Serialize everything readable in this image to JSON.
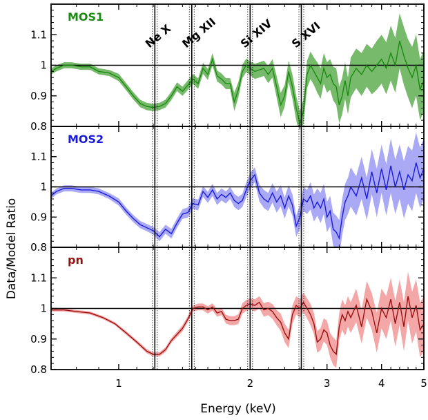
{
  "chart_data": {
    "type": "line",
    "xlabel": "Energy (keV)",
    "ylabel": "Data/Model Ratio",
    "x_scale": "log",
    "xlim": [
      0.7,
      5.0
    ],
    "x_ticks": [
      1,
      2,
      3,
      4,
      5
    ],
    "x_tick_labels": [
      "1",
      "2",
      "3",
      "4",
      "5"
    ],
    "ylim": [
      0.8,
      1.2
    ],
    "y_ticks": [
      0.8,
      0.9,
      1.0,
      1.1
    ],
    "y_tick_labels": [
      "0.8",
      "0.9",
      "1",
      "1.1"
    ],
    "reference_y": 1.0,
    "lines": [
      {
        "label": "Ne X",
        "energy": 1.21
      },
      {
        "label": "Mg XII",
        "energy": 1.47
      },
      {
        "label": "Si XIV",
        "energy": 2.0
      },
      {
        "label": "S XVI",
        "energy": 2.62
      }
    ],
    "panels": [
      {
        "name": "MOS1",
        "color": "#1a8a10",
        "band_color": "#4aa33a",
        "points": [
          [
            0.7,
            0.98,
            0.01
          ],
          [
            0.72,
            0.99,
            0.01
          ],
          [
            0.75,
            1.0,
            0.01
          ],
          [
            0.78,
            1.0,
            0.01
          ],
          [
            0.82,
            0.995,
            0.01
          ],
          [
            0.86,
            0.995,
            0.01
          ],
          [
            0.9,
            0.98,
            0.01
          ],
          [
            0.95,
            0.975,
            0.01
          ],
          [
            1.0,
            0.96,
            0.012
          ],
          [
            1.04,
            0.93,
            0.012
          ],
          [
            1.08,
            0.9,
            0.012
          ],
          [
            1.12,
            0.875,
            0.012
          ],
          [
            1.16,
            0.865,
            0.012
          ],
          [
            1.2,
            0.862,
            0.012
          ],
          [
            1.24,
            0.865,
            0.012
          ],
          [
            1.28,
            0.875,
            0.013
          ],
          [
            1.32,
            0.9,
            0.014
          ],
          [
            1.36,
            0.93,
            0.014
          ],
          [
            1.4,
            0.915,
            0.015
          ],
          [
            1.44,
            0.935,
            0.016
          ],
          [
            1.48,
            0.955,
            0.016
          ],
          [
            1.52,
            0.94,
            0.017
          ],
          [
            1.56,
            0.99,
            0.018
          ],
          [
            1.6,
            0.97,
            0.018
          ],
          [
            1.64,
            1.02,
            0.02
          ],
          [
            1.68,
            0.965,
            0.018
          ],
          [
            1.72,
            0.955,
            0.018
          ],
          [
            1.76,
            0.94,
            0.018
          ],
          [
            1.8,
            0.94,
            0.018
          ],
          [
            1.84,
            0.88,
            0.03
          ],
          [
            1.88,
            0.92,
            0.025
          ],
          [
            1.92,
            0.98,
            0.022
          ],
          [
            1.96,
            1.0,
            0.022
          ],
          [
            2.0,
            0.99,
            0.022
          ],
          [
            2.05,
            0.98,
            0.025
          ],
          [
            2.1,
            0.985,
            0.025
          ],
          [
            2.15,
            0.99,
            0.025
          ],
          [
            2.2,
            0.97,
            0.028
          ],
          [
            2.25,
            0.99,
            0.03
          ],
          [
            2.3,
            0.93,
            0.035
          ],
          [
            2.35,
            0.87,
            0.04
          ],
          [
            2.4,
            0.9,
            0.035
          ],
          [
            2.45,
            0.98,
            0.035
          ],
          [
            2.5,
            0.93,
            0.04
          ],
          [
            2.55,
            0.86,
            0.04
          ],
          [
            2.6,
            0.81,
            0.04
          ],
          [
            2.65,
            0.85,
            0.04
          ],
          [
            2.7,
            0.97,
            0.045
          ],
          [
            2.75,
            1.0,
            0.045
          ],
          [
            2.8,
            0.98,
            0.045
          ],
          [
            2.85,
            0.96,
            0.05
          ],
          [
            2.9,
            0.94,
            0.05
          ],
          [
            2.95,
            0.99,
            0.05
          ],
          [
            3.0,
            0.96,
            0.05
          ],
          [
            3.05,
            0.97,
            0.05
          ],
          [
            3.1,
            0.94,
            0.055
          ],
          [
            3.15,
            0.93,
            0.06
          ],
          [
            3.2,
            0.87,
            0.06
          ],
          [
            3.25,
            0.9,
            0.06
          ],
          [
            3.3,
            0.95,
            0.06
          ],
          [
            3.35,
            0.9,
            0.06
          ],
          [
            3.4,
            0.96,
            0.065
          ],
          [
            3.5,
            0.99,
            0.065
          ],
          [
            3.6,
            0.97,
            0.07
          ],
          [
            3.7,
            1.0,
            0.07
          ],
          [
            3.8,
            0.98,
            0.075
          ],
          [
            3.9,
            1.0,
            0.08
          ],
          [
            4.0,
            1.02,
            0.08
          ],
          [
            4.1,
            0.99,
            0.085
          ],
          [
            4.2,
            1.04,
            0.09
          ],
          [
            4.3,
            1.0,
            0.09
          ],
          [
            4.4,
            1.08,
            0.09
          ],
          [
            4.5,
            1.03,
            0.095
          ],
          [
            4.6,
            0.99,
            0.095
          ],
          [
            4.7,
            0.96,
            0.1
          ],
          [
            4.8,
            1.0,
            0.1
          ],
          [
            4.9,
            0.92,
            0.1
          ],
          [
            5.0,
            0.95,
            0.1
          ]
        ]
      },
      {
        "name": "MOS2",
        "color": "#1a1adc",
        "band_color": "#8c8cf2",
        "points": [
          [
            0.7,
            0.97,
            0.01
          ],
          [
            0.72,
            0.985,
            0.01
          ],
          [
            0.75,
            0.995,
            0.01
          ],
          [
            0.78,
            0.995,
            0.01
          ],
          [
            0.82,
            0.99,
            0.01
          ],
          [
            0.86,
            0.99,
            0.01
          ],
          [
            0.9,
            0.985,
            0.01
          ],
          [
            0.95,
            0.97,
            0.01
          ],
          [
            1.0,
            0.95,
            0.012
          ],
          [
            1.04,
            0.92,
            0.012
          ],
          [
            1.08,
            0.895,
            0.012
          ],
          [
            1.12,
            0.875,
            0.012
          ],
          [
            1.16,
            0.865,
            0.012
          ],
          [
            1.2,
            0.855,
            0.013
          ],
          [
            1.24,
            0.835,
            0.015
          ],
          [
            1.28,
            0.86,
            0.015
          ],
          [
            1.32,
            0.845,
            0.016
          ],
          [
            1.36,
            0.88,
            0.016
          ],
          [
            1.4,
            0.91,
            0.016
          ],
          [
            1.44,
            0.915,
            0.017
          ],
          [
            1.48,
            0.945,
            0.018
          ],
          [
            1.52,
            0.94,
            0.018
          ],
          [
            1.56,
            0.985,
            0.018
          ],
          [
            1.6,
            0.965,
            0.018
          ],
          [
            1.64,
            0.99,
            0.02
          ],
          [
            1.68,
            0.96,
            0.02
          ],
          [
            1.72,
            0.975,
            0.02
          ],
          [
            1.76,
            0.965,
            0.02
          ],
          [
            1.8,
            0.98,
            0.02
          ],
          [
            1.84,
            0.955,
            0.022
          ],
          [
            1.88,
            0.945,
            0.022
          ],
          [
            1.92,
            0.955,
            0.022
          ],
          [
            1.96,
            0.99,
            0.025
          ],
          [
            2.0,
            1.02,
            0.025
          ],
          [
            2.05,
            1.04,
            0.025
          ],
          [
            2.1,
            0.98,
            0.028
          ],
          [
            2.15,
            0.96,
            0.03
          ],
          [
            2.2,
            0.95,
            0.03
          ],
          [
            2.25,
            0.98,
            0.032
          ],
          [
            2.3,
            0.95,
            0.035
          ],
          [
            2.35,
            0.97,
            0.035
          ],
          [
            2.4,
            0.93,
            0.035
          ],
          [
            2.45,
            0.97,
            0.035
          ],
          [
            2.5,
            0.94,
            0.035
          ],
          [
            2.55,
            0.87,
            0.035
          ],
          [
            2.6,
            0.9,
            0.04
          ],
          [
            2.65,
            0.96,
            0.04
          ],
          [
            2.7,
            0.95,
            0.04
          ],
          [
            2.75,
            0.97,
            0.045
          ],
          [
            2.8,
            0.93,
            0.045
          ],
          [
            2.85,
            0.95,
            0.045
          ],
          [
            2.9,
            0.93,
            0.05
          ],
          [
            2.95,
            0.96,
            0.05
          ],
          [
            3.0,
            0.9,
            0.05
          ],
          [
            3.05,
            0.92,
            0.05
          ],
          [
            3.1,
            0.86,
            0.055
          ],
          [
            3.15,
            0.85,
            0.055
          ],
          [
            3.2,
            0.83,
            0.06
          ],
          [
            3.25,
            0.9,
            0.06
          ],
          [
            3.3,
            0.95,
            0.06
          ],
          [
            3.35,
            0.97,
            0.06
          ],
          [
            3.4,
            1.0,
            0.065
          ],
          [
            3.5,
            0.97,
            0.065
          ],
          [
            3.6,
            1.03,
            0.07
          ],
          [
            3.7,
            0.96,
            0.07
          ],
          [
            3.8,
            1.05,
            0.075
          ],
          [
            3.9,
            0.98,
            0.08
          ],
          [
            4.0,
            1.06,
            0.08
          ],
          [
            4.1,
            0.99,
            0.085
          ],
          [
            4.2,
            1.07,
            0.09
          ],
          [
            4.3,
            1.0,
            0.09
          ],
          [
            4.4,
            1.05,
            0.09
          ],
          [
            4.5,
            0.99,
            0.095
          ],
          [
            4.6,
            1.04,
            0.095
          ],
          [
            4.7,
            1.02,
            0.1
          ],
          [
            4.8,
            1.08,
            0.1
          ],
          [
            4.9,
            1.03,
            0.1
          ],
          [
            5.0,
            1.06,
            0.1
          ]
        ]
      },
      {
        "name": "pn",
        "color": "#991010",
        "band_color": "#f08a8a",
        "points": [
          [
            0.7,
            0.995,
            0.005
          ],
          [
            0.75,
            0.995,
            0.005
          ],
          [
            0.8,
            0.99,
            0.005
          ],
          [
            0.86,
            0.985,
            0.005
          ],
          [
            0.92,
            0.97,
            0.005
          ],
          [
            0.98,
            0.95,
            0.005
          ],
          [
            1.04,
            0.92,
            0.006
          ],
          [
            1.1,
            0.89,
            0.006
          ],
          [
            1.16,
            0.86,
            0.007
          ],
          [
            1.2,
            0.85,
            0.007
          ],
          [
            1.24,
            0.85,
            0.007
          ],
          [
            1.28,
            0.865,
            0.008
          ],
          [
            1.32,
            0.895,
            0.008
          ],
          [
            1.36,
            0.915,
            0.009
          ],
          [
            1.4,
            0.935,
            0.01
          ],
          [
            1.44,
            0.965,
            0.01
          ],
          [
            1.48,
            1.0,
            0.01
          ],
          [
            1.52,
            1.005,
            0.011
          ],
          [
            1.56,
            1.005,
            0.011
          ],
          [
            1.6,
            0.995,
            0.012
          ],
          [
            1.64,
            1.005,
            0.012
          ],
          [
            1.68,
            0.985,
            0.012
          ],
          [
            1.72,
            0.99,
            0.012
          ],
          [
            1.76,
            0.965,
            0.014
          ],
          [
            1.8,
            0.96,
            0.015
          ],
          [
            1.84,
            0.96,
            0.015
          ],
          [
            1.88,
            0.965,
            0.016
          ],
          [
            1.92,
            1.0,
            0.017
          ],
          [
            1.96,
            1.01,
            0.018
          ],
          [
            2.0,
            1.015,
            0.018
          ],
          [
            2.05,
            1.01,
            0.02
          ],
          [
            2.1,
            1.02,
            0.02
          ],
          [
            2.15,
            0.995,
            0.022
          ],
          [
            2.2,
            1.0,
            0.022
          ],
          [
            2.25,
            0.99,
            0.024
          ],
          [
            2.3,
            0.97,
            0.025
          ],
          [
            2.35,
            0.955,
            0.028
          ],
          [
            2.4,
            0.92,
            0.03
          ],
          [
            2.45,
            0.9,
            0.03
          ],
          [
            2.5,
            0.98,
            0.03
          ],
          [
            2.55,
            1.01,
            0.03
          ],
          [
            2.6,
            1.0,
            0.03
          ],
          [
            2.65,
            1.02,
            0.032
          ],
          [
            2.7,
            1.0,
            0.033
          ],
          [
            2.75,
            0.98,
            0.035
          ],
          [
            2.8,
            0.95,
            0.035
          ],
          [
            2.85,
            0.89,
            0.035
          ],
          [
            2.9,
            0.9,
            0.036
          ],
          [
            2.95,
            0.93,
            0.038
          ],
          [
            3.0,
            0.92,
            0.04
          ],
          [
            3.05,
            0.88,
            0.04
          ],
          [
            3.1,
            0.86,
            0.045
          ],
          [
            3.15,
            0.85,
            0.045
          ],
          [
            3.2,
            0.94,
            0.045
          ],
          [
            3.25,
            0.98,
            0.05
          ],
          [
            3.3,
            0.96,
            0.05
          ],
          [
            3.35,
            0.99,
            0.05
          ],
          [
            3.4,
            0.97,
            0.05
          ],
          [
            3.5,
            1.01,
            0.055
          ],
          [
            3.6,
            0.94,
            0.055
          ],
          [
            3.7,
            1.03,
            0.06
          ],
          [
            3.8,
            0.99,
            0.06
          ],
          [
            3.9,
            0.92,
            0.065
          ],
          [
            4.0,
            1.0,
            0.065
          ],
          [
            4.1,
            0.97,
            0.07
          ],
          [
            4.2,
            1.03,
            0.07
          ],
          [
            4.3,
            0.95,
            0.075
          ],
          [
            4.4,
            1.02,
            0.075
          ],
          [
            4.5,
            0.94,
            0.08
          ],
          [
            4.6,
            1.04,
            0.08
          ],
          [
            4.7,
            0.97,
            0.085
          ],
          [
            4.8,
            1.01,
            0.085
          ],
          [
            4.9,
            0.93,
            0.09
          ],
          [
            5.0,
            0.95,
            0.09
          ]
        ]
      }
    ]
  }
}
